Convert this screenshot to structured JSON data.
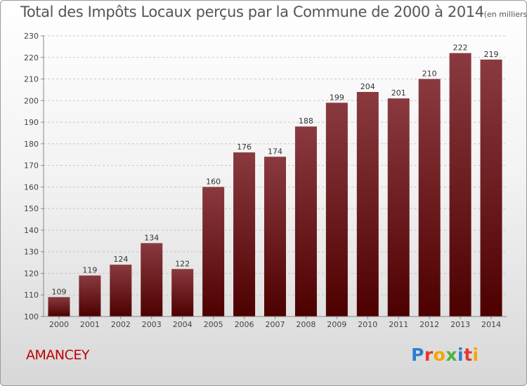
{
  "title": "Total des Impôts Locaux perçus par la Commune de 2000 à 2014",
  "subtitle": "(en milliers d'€)",
  "commune": "AMANCEY",
  "logo": {
    "letters": [
      "P",
      "r",
      "o",
      "x",
      "i",
      "t",
      "i"
    ]
  },
  "colors": {
    "bar_top": "#8a3a3f",
    "bar_bottom": "#4d0000",
    "commune": "#c00000"
  },
  "chart_data": {
    "type": "bar",
    "title": "Total des Impôts Locaux perçus par la Commune de 2000 à 2014",
    "subtitle": "(en milliers d'€)",
    "categories": [
      "2000",
      "2001",
      "2002",
      "2003",
      "2004",
      "2005",
      "2006",
      "2007",
      "2008",
      "2009",
      "2010",
      "2011",
      "2012",
      "2013",
      "2014"
    ],
    "values": [
      109,
      119,
      124,
      134,
      122,
      160,
      176,
      174,
      188,
      199,
      204,
      201,
      210,
      222,
      219
    ],
    "ylim": [
      100,
      230
    ],
    "yticks": [
      100,
      110,
      120,
      130,
      140,
      150,
      160,
      170,
      180,
      190,
      200,
      210,
      220,
      230
    ],
    "grid": true,
    "data_labels": true
  }
}
